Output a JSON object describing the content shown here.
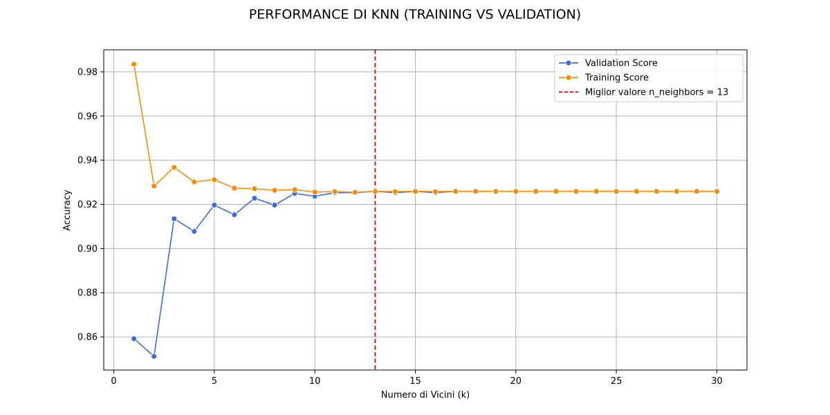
{
  "chart_data": {
    "type": "line",
    "title": "PERFORMANCE DI KNN (TRAINING VS VALIDATION)",
    "xlabel": "Numero di Vicini (k)",
    "ylabel": "Accuracy",
    "xlim": [
      -0.5,
      31.5
    ],
    "ylim": [
      0.845,
      0.99
    ],
    "xticks": [
      0,
      5,
      10,
      15,
      20,
      25,
      30
    ],
    "yticks": [
      0.86,
      0.88,
      0.9,
      0.92,
      0.94,
      0.96,
      0.98
    ],
    "ytick_labels": [
      "0.86",
      "0.88",
      "0.90",
      "0.92",
      "0.94",
      "0.96",
      "0.98"
    ],
    "grid": true,
    "legend_position": "top-right",
    "x": [
      1,
      2,
      3,
      4,
      5,
      6,
      7,
      8,
      9,
      10,
      11,
      12,
      13,
      14,
      15,
      16,
      17,
      18,
      19,
      20,
      21,
      22,
      23,
      24,
      25,
      26,
      27,
      28,
      29,
      30
    ],
    "series": [
      {
        "name": "Validation Score",
        "color": "#4169e1",
        "marker": "circle",
        "values": [
          0.8592,
          0.8512,
          0.9135,
          0.9078,
          0.9197,
          0.9153,
          0.9228,
          0.9197,
          0.925,
          0.9237,
          0.9253,
          0.9253,
          0.9259,
          0.9253,
          0.9259,
          0.9253,
          0.9259,
          0.9259,
          0.9259,
          0.9259,
          0.9259,
          0.9259,
          0.9259,
          0.9259,
          0.9259,
          0.9259,
          0.9259,
          0.9259,
          0.9259,
          0.9259
        ]
      },
      {
        "name": "Training Score",
        "color": "#ff8c00",
        "marker": "circle",
        "values": [
          0.9835,
          0.9283,
          0.9368,
          0.9302,
          0.9312,
          0.9274,
          0.9271,
          0.9264,
          0.9267,
          0.9256,
          0.9258,
          0.9255,
          0.9259,
          0.9258,
          0.9259,
          0.9258,
          0.9259,
          0.9259,
          0.9259,
          0.9259,
          0.9259,
          0.9259,
          0.9259,
          0.9259,
          0.9259,
          0.9259,
          0.9259,
          0.9259,
          0.9259,
          0.9259
        ]
      }
    ],
    "reference_line": {
      "name": "Miglior valore n_neighbors = 13",
      "orientation": "vertical",
      "x": 13,
      "color": "#ff0000",
      "style": "dashed"
    }
  }
}
